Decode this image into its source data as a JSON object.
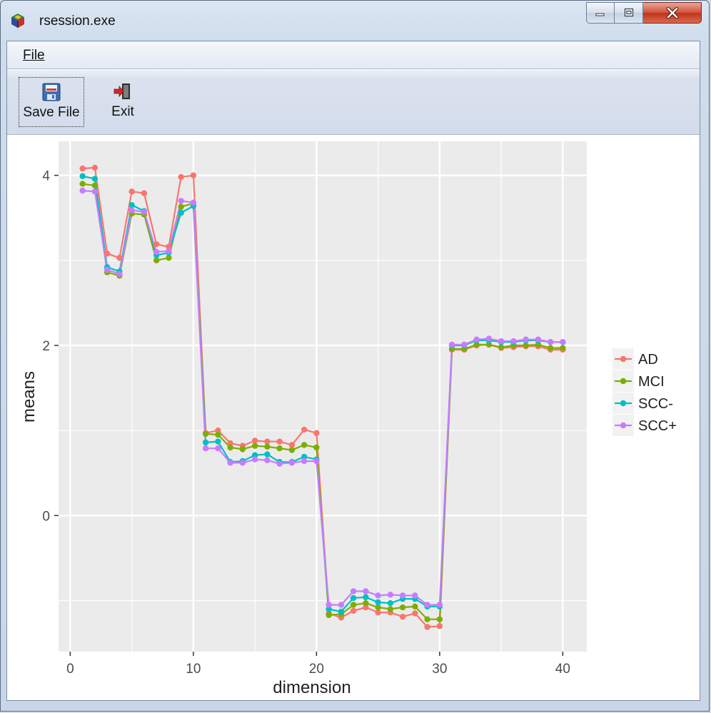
{
  "window": {
    "title": "rsession.exe",
    "app_icon": "r-cube-icon"
  },
  "menu": {
    "file_label": "File"
  },
  "toolbar": {
    "save_label": "Save File",
    "save_icon": "floppy-disk-icon",
    "exit_label": "Exit",
    "exit_icon": "exit-door-icon"
  },
  "chart_data": {
    "type": "line",
    "xlabel": "dimension",
    "ylabel": "means",
    "xlim": [
      -0.95,
      41.95
    ],
    "ylim": [
      -1.6,
      4.4
    ],
    "x_ticks": [
      0,
      10,
      20,
      30,
      40
    ],
    "y_ticks": [
      0,
      2,
      4
    ],
    "grid": true,
    "legend": "right",
    "x": [
      1,
      2,
      3,
      4,
      5,
      6,
      7,
      8,
      9,
      10,
      11,
      12,
      13,
      14,
      15,
      16,
      17,
      18,
      19,
      20,
      21,
      22,
      23,
      24,
      25,
      26,
      27,
      28,
      29,
      30,
      31,
      32,
      33,
      34,
      35,
      36,
      37,
      38,
      39,
      40
    ],
    "series": [
      {
        "name": "AD",
        "color": "#F8766D",
        "values": [
          4.08,
          4.09,
          3.08,
          3.03,
          3.81,
          3.79,
          3.19,
          3.16,
          3.98,
          4.0,
          0.97,
          1.0,
          0.85,
          0.82,
          0.88,
          0.87,
          0.87,
          0.83,
          1.01,
          0.97,
          -1.15,
          -1.2,
          -1.12,
          -1.08,
          -1.14,
          -1.14,
          -1.19,
          -1.15,
          -1.31,
          -1.3,
          1.95,
          1.95,
          2.0,
          2.01,
          1.97,
          1.98,
          1.99,
          1.99,
          1.95,
          1.95
        ]
      },
      {
        "name": "MCI",
        "color": "#7CAE00",
        "values": [
          3.9,
          3.88,
          2.86,
          2.82,
          3.55,
          3.54,
          3.0,
          3.03,
          3.63,
          3.67,
          0.96,
          0.95,
          0.8,
          0.78,
          0.82,
          0.81,
          0.79,
          0.77,
          0.83,
          0.8,
          -1.17,
          -1.16,
          -1.05,
          -1.03,
          -1.08,
          -1.1,
          -1.08,
          -1.07,
          -1.22,
          -1.22,
          1.96,
          1.96,
          2.01,
          2.01,
          1.98,
          2.0,
          2.0,
          2.01,
          1.97,
          1.97
        ]
      },
      {
        "name": "SCC-",
        "color": "#00BFC4",
        "values": [
          3.99,
          3.96,
          2.92,
          2.87,
          3.65,
          3.58,
          3.06,
          3.09,
          3.56,
          3.64,
          0.86,
          0.87,
          0.63,
          0.64,
          0.71,
          0.72,
          0.63,
          0.63,
          0.69,
          0.66,
          -1.1,
          -1.13,
          -0.97,
          -0.96,
          -1.02,
          -1.03,
          -0.98,
          -0.98,
          -1.07,
          -1.07,
          2.0,
          2.0,
          2.06,
          2.06,
          2.04,
          2.04,
          2.06,
          2.06,
          2.04,
          2.04
        ]
      },
      {
        "name": "SCC+",
        "color": "#C77CFF",
        "values": [
          3.82,
          3.81,
          2.89,
          2.84,
          3.59,
          3.57,
          3.1,
          3.11,
          3.7,
          3.68,
          0.79,
          0.79,
          0.62,
          0.62,
          0.66,
          0.65,
          0.61,
          0.62,
          0.64,
          0.64,
          -1.05,
          -1.05,
          -0.89,
          -0.89,
          -0.94,
          -0.93,
          -0.94,
          -0.94,
          -1.05,
          -1.05,
          2.01,
          2.01,
          2.07,
          2.08,
          2.05,
          2.05,
          2.07,
          2.07,
          2.04,
          2.04
        ]
      }
    ]
  }
}
